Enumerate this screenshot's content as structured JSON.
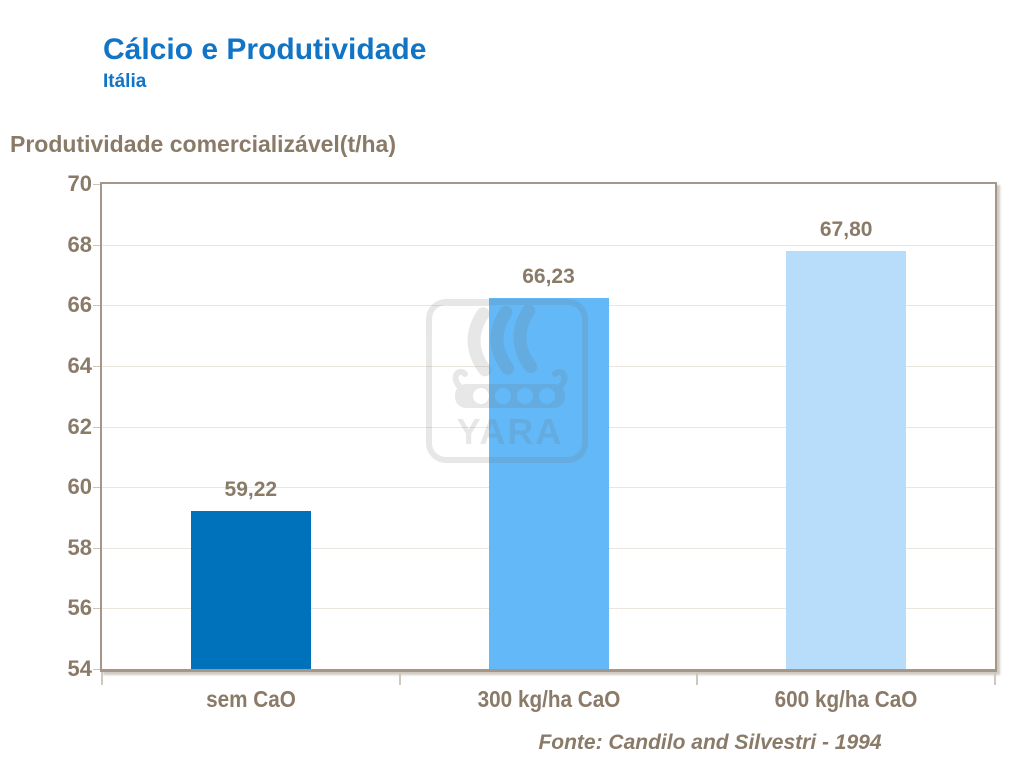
{
  "header": {
    "title": "Cálcio e Produtividade",
    "subtitle": "Itália"
  },
  "chart_data": {
    "type": "bar",
    "title": "Cálcio e Produtividade",
    "subtitle": "Itália",
    "ylabel": "Produtividade comercializável(t/ha)",
    "xlabel": "",
    "categories": [
      "sem CaO",
      "300 kg/ha CaO",
      "600 kg/ha CaO"
    ],
    "values": [
      59.22,
      66.23,
      67.8
    ],
    "value_labels": [
      "59,22",
      "66,23",
      "67,80"
    ],
    "bar_colors": [
      "#0072BC",
      "#63B8F7",
      "#B8DDFB"
    ],
    "ylim": [
      54,
      70
    ],
    "ytick_step": 2,
    "yticks": [
      54,
      56,
      58,
      60,
      62,
      64,
      66,
      68,
      70
    ],
    "grid": true,
    "legend": false
  },
  "footer": {
    "source": "Fonte: Candilo and Silvestri - 1994"
  },
  "watermark": {
    "icon": "yara-viking-ship-logo",
    "text": "YARA"
  },
  "colors": {
    "title_blue": "#1274C5",
    "text_taupe": "#8A7A68",
    "axis_border": "#A5968A",
    "gridline": "#EAE5DF",
    "bar_dark_blue": "#0072BC",
    "bar_medium_blue": "#63B8F7",
    "bar_light_blue": "#B8DDFB"
  }
}
